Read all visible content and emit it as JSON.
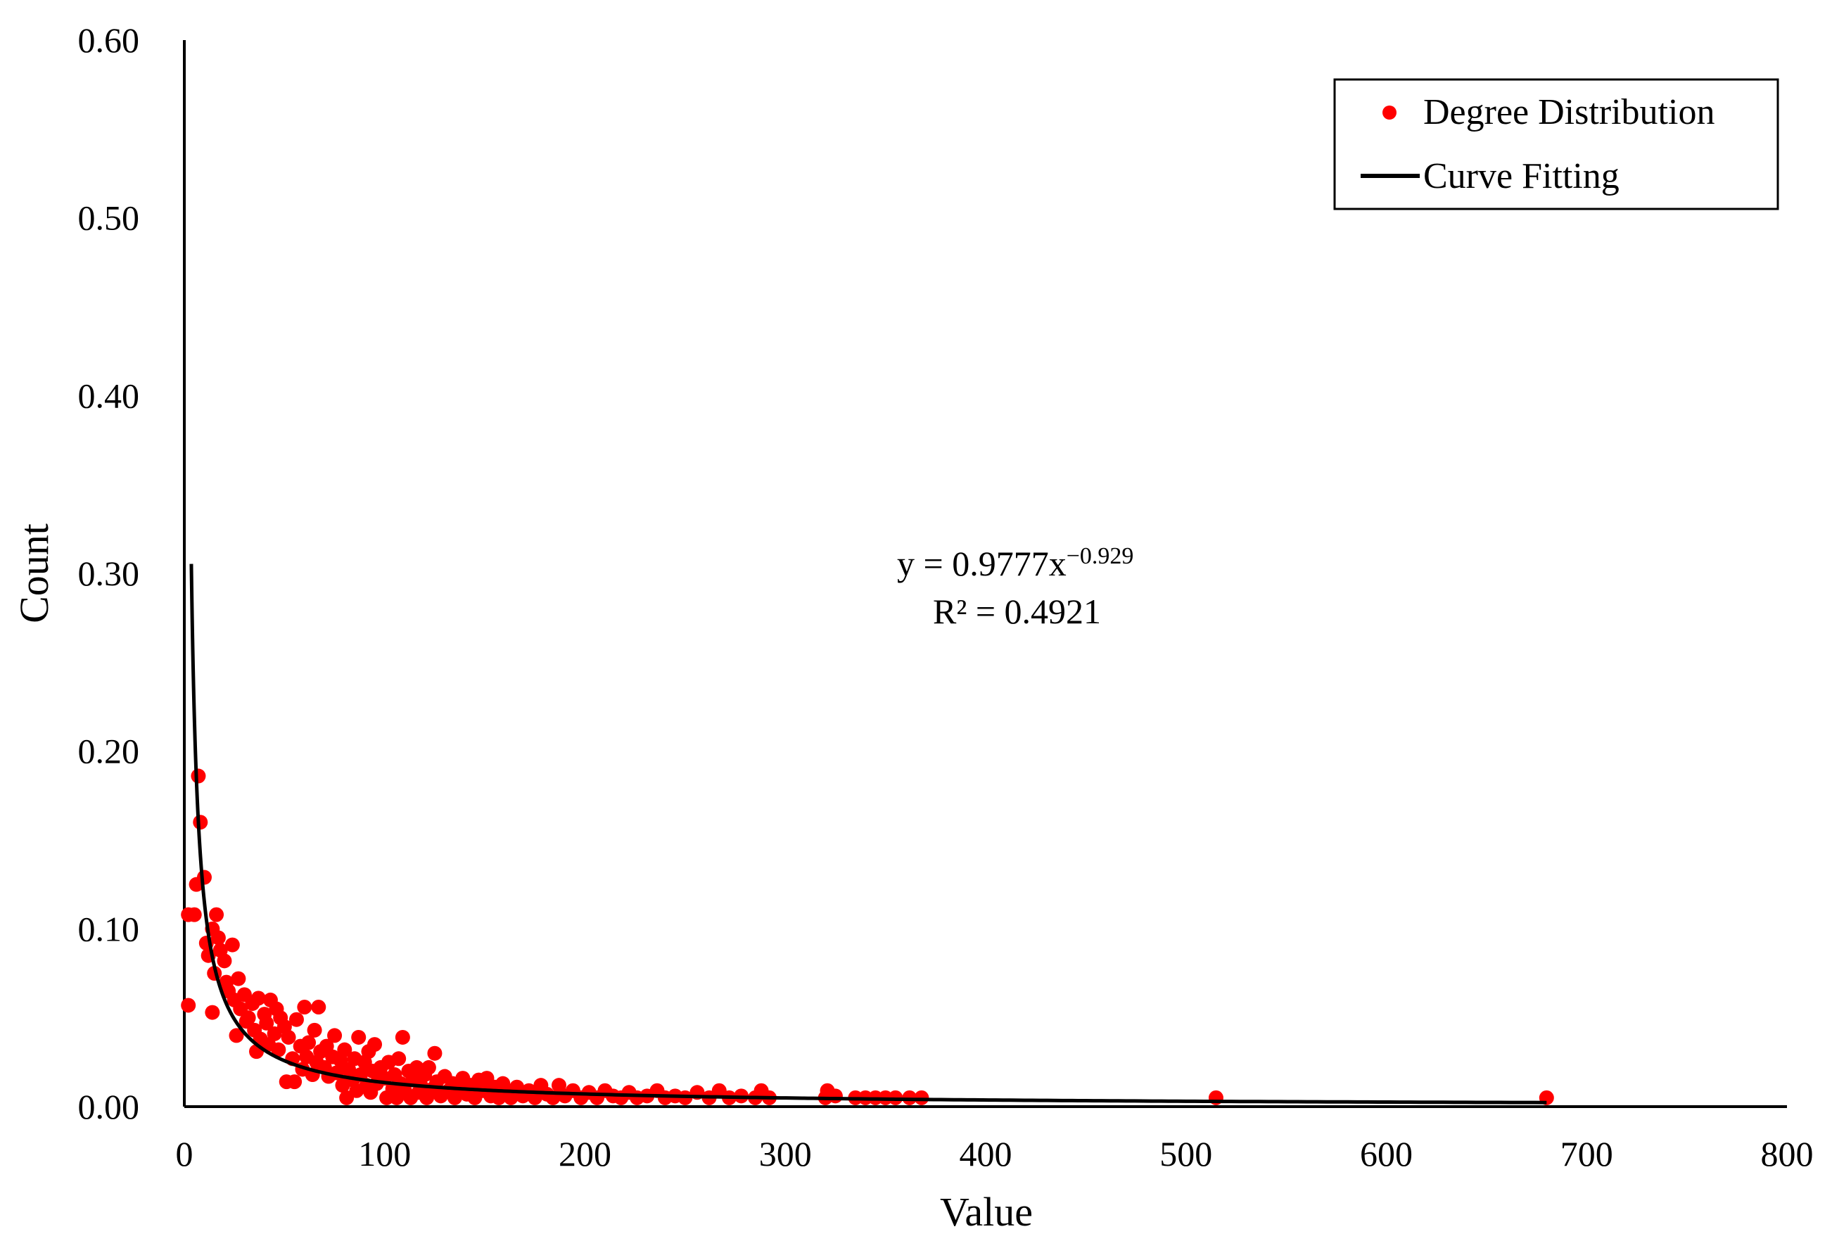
{
  "chart_data": {
    "type": "scatter",
    "title": "",
    "xlabel": "Value",
    "ylabel": "Count",
    "xlim": [
      0,
      800
    ],
    "ylim": [
      0,
      0.6
    ],
    "x_ticks": [
      "0",
      "100",
      "200",
      "300",
      "400",
      "500",
      "600",
      "700",
      "800"
    ],
    "y_ticks": [
      "0.00",
      "0.10",
      "0.20",
      "0.30",
      "0.40",
      "0.50",
      "0.60"
    ],
    "grid": false,
    "legend_position": "top-right",
    "equation": {
      "prefix": "y = 0.9777x",
      "exponent": "−0.929",
      "r2": "R² = 0.4921"
    },
    "series": [
      {
        "name": "Degree Distribution",
        "kind": "scatter",
        "color": "#ff0000",
        "points": [
          [
            2,
            0.057
          ],
          [
            2,
            0.108
          ],
          [
            5,
            0.108
          ],
          [
            6,
            0.125
          ],
          [
            7,
            0.186
          ],
          [
            8,
            0.16
          ],
          [
            10,
            0.129
          ],
          [
            11,
            0.092
          ],
          [
            12,
            0.085
          ],
          [
            14,
            0.1
          ],
          [
            14,
            0.053
          ],
          [
            15,
            0.075
          ],
          [
            16,
            0.108
          ],
          [
            17,
            0.095
          ],
          [
            18,
            0.088
          ],
          [
            20,
            0.082
          ],
          [
            21,
            0.07
          ],
          [
            22,
            0.065
          ],
          [
            24,
            0.091
          ],
          [
            25,
            0.06
          ],
          [
            26,
            0.04
          ],
          [
            27,
            0.072
          ],
          [
            28,
            0.055
          ],
          [
            30,
            0.063
          ],
          [
            31,
            0.048
          ],
          [
            32,
            0.05
          ],
          [
            34,
            0.058
          ],
          [
            35,
            0.043
          ],
          [
            36,
            0.031
          ],
          [
            37,
            0.061
          ],
          [
            38,
            0.038
          ],
          [
            40,
            0.052
          ],
          [
            41,
            0.047
          ],
          [
            42,
            0.035
          ],
          [
            43,
            0.06
          ],
          [
            45,
            0.041
          ],
          [
            46,
            0.055
          ],
          [
            47,
            0.032
          ],
          [
            48,
            0.05
          ],
          [
            50,
            0.045
          ],
          [
            51,
            0.014
          ],
          [
            52,
            0.039
          ],
          [
            54,
            0.027
          ],
          [
            55,
            0.014
          ],
          [
            56,
            0.049
          ],
          [
            58,
            0.034
          ],
          [
            59,
            0.021
          ],
          [
            60,
            0.056
          ],
          [
            61,
            0.028
          ],
          [
            62,
            0.036
          ],
          [
            64,
            0.018
          ],
          [
            65,
            0.043
          ],
          [
            66,
            0.025
          ],
          [
            67,
            0.056
          ],
          [
            68,
            0.031
          ],
          [
            70,
            0.022
          ],
          [
            71,
            0.034
          ],
          [
            72,
            0.017
          ],
          [
            74,
            0.028
          ],
          [
            75,
            0.04
          ],
          [
            76,
            0.019
          ],
          [
            78,
            0.026
          ],
          [
            79,
            0.012
          ],
          [
            80,
            0.032
          ],
          [
            81,
            0.005
          ],
          [
            82,
            0.021
          ],
          [
            84,
            0.015
          ],
          [
            85,
            0.027
          ],
          [
            86,
            0.009
          ],
          [
            87,
            0.039
          ],
          [
            88,
            0.018
          ],
          [
            90,
            0.025
          ],
          [
            91,
            0.012
          ],
          [
            92,
            0.031
          ],
          [
            93,
            0.008
          ],
          [
            94,
            0.02
          ],
          [
            95,
            0.035
          ],
          [
            96,
            0.013
          ],
          [
            98,
            0.022
          ],
          [
            100,
            0.016
          ],
          [
            101,
            0.005
          ],
          [
            102,
            0.025
          ],
          [
            104,
            0.01
          ],
          [
            105,
            0.018
          ],
          [
            106,
            0.005
          ],
          [
            107,
            0.027
          ],
          [
            108,
            0.013
          ],
          [
            109,
            0.039
          ],
          [
            110,
            0.009
          ],
          [
            112,
            0.02
          ],
          [
            113,
            0.005
          ],
          [
            114,
            0.015
          ],
          [
            116,
            0.022
          ],
          [
            117,
            0.008
          ],
          [
            118,
            0.012
          ],
          [
            120,
            0.018
          ],
          [
            121,
            0.005
          ],
          [
            122,
            0.022
          ],
          [
            124,
            0.01
          ],
          [
            125,
            0.03
          ],
          [
            126,
            0.014
          ],
          [
            128,
            0.006
          ],
          [
            130,
            0.017
          ],
          [
            132,
            0.009
          ],
          [
            134,
            0.013
          ],
          [
            135,
            0.005
          ],
          [
            137,
            0.011
          ],
          [
            139,
            0.016
          ],
          [
            141,
            0.007
          ],
          [
            143,
            0.012
          ],
          [
            145,
            0.005
          ],
          [
            147,
            0.015
          ],
          [
            149,
            0.009
          ],
          [
            151,
            0.016
          ],
          [
            153,
            0.006
          ],
          [
            155,
            0.011
          ],
          [
            157,
            0.005
          ],
          [
            159,
            0.013
          ],
          [
            161,
            0.008
          ],
          [
            163,
            0.005
          ],
          [
            166,
            0.011
          ],
          [
            169,
            0.006
          ],
          [
            172,
            0.009
          ],
          [
            175,
            0.005
          ],
          [
            178,
            0.012
          ],
          [
            181,
            0.007
          ],
          [
            184,
            0.005
          ],
          [
            187,
            0.012
          ],
          [
            190,
            0.006
          ],
          [
            194,
            0.009
          ],
          [
            198,
            0.005
          ],
          [
            202,
            0.008
          ],
          [
            206,
            0.005
          ],
          [
            210,
            0.009
          ],
          [
            214,
            0.006
          ],
          [
            218,
            0.005
          ],
          [
            222,
            0.008
          ],
          [
            226,
            0.005
          ],
          [
            231,
            0.006
          ],
          [
            236,
            0.009
          ],
          [
            240,
            0.005
          ],
          [
            245,
            0.006
          ],
          [
            250,
            0.005
          ],
          [
            256,
            0.008
          ],
          [
            262,
            0.005
          ],
          [
            267,
            0.009
          ],
          [
            272,
            0.005
          ],
          [
            278,
            0.006
          ],
          [
            285,
            0.005
          ],
          [
            288,
            0.009
          ],
          [
            292,
            0.005
          ],
          [
            320,
            0.005
          ],
          [
            321,
            0.009
          ],
          [
            325,
            0.006
          ],
          [
            335,
            0.005
          ],
          [
            340,
            0.005
          ],
          [
            345,
            0.005
          ],
          [
            350,
            0.005
          ],
          [
            355,
            0.005
          ],
          [
            362,
            0.005
          ],
          [
            368,
            0.005
          ],
          [
            515,
            0.005
          ],
          [
            680,
            0.005
          ]
        ]
      },
      {
        "name": "Curve Fitting",
        "kind": "line",
        "color": "#000000",
        "coefficient": 0.9777,
        "power": -0.929,
        "x_range": [
          3.5,
          680
        ]
      }
    ]
  }
}
